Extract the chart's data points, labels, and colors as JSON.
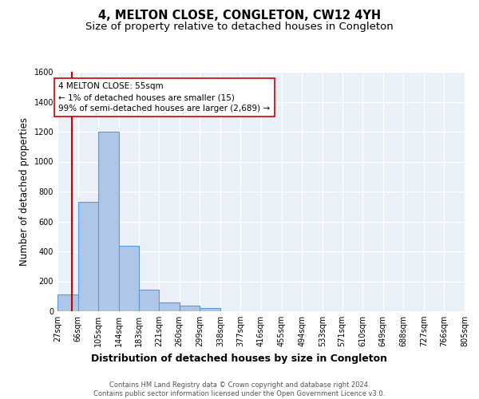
{
  "title": "4, MELTON CLOSE, CONGLETON, CW12 4YH",
  "subtitle": "Size of property relative to detached houses in Congleton",
  "xlabel": "Distribution of detached houses by size in Congleton",
  "ylabel": "Number of detached properties",
  "bin_edges": [
    27,
    66,
    105,
    144,
    183,
    221,
    260,
    299,
    338,
    377,
    416,
    455,
    494,
    533,
    571,
    610,
    649,
    688,
    727,
    766,
    805
  ],
  "bin_labels": [
    "27sqm",
    "66sqm",
    "105sqm",
    "144sqm",
    "183sqm",
    "221sqm",
    "260sqm",
    "299sqm",
    "338sqm",
    "377sqm",
    "416sqm",
    "455sqm",
    "494sqm",
    "533sqm",
    "571sqm",
    "610sqm",
    "649sqm",
    "688sqm",
    "727sqm",
    "766sqm",
    "805sqm"
  ],
  "counts": [
    110,
    730,
    1200,
    440,
    145,
    60,
    35,
    20,
    0,
    0,
    0,
    0,
    0,
    0,
    0,
    0,
    0,
    0,
    0,
    0
  ],
  "bar_color": "#aec6e8",
  "bar_edge_color": "#5b9bd5",
  "property_line_x": 55,
  "property_line_color": "#cc0000",
  "annotation_text": "4 MELTON CLOSE: 55sqm\n← 1% of detached houses are smaller (15)\n99% of semi-detached houses are larger (2,689) →",
  "annotation_box_color": "#ffffff",
  "annotation_box_edge": "#cc0000",
  "ylim": [
    0,
    1600
  ],
  "yticks": [
    0,
    200,
    400,
    600,
    800,
    1000,
    1200,
    1400,
    1600
  ],
  "background_color": "#eaf0f8",
  "grid_color": "#ffffff",
  "footer_text": "Contains HM Land Registry data © Crown copyright and database right 2024.\nContains public sector information licensed under the Open Government Licence v3.0.",
  "title_fontsize": 10.5,
  "subtitle_fontsize": 9.5,
  "ylabel_fontsize": 8.5,
  "xlabel_fontsize": 9,
  "tick_fontsize": 7,
  "annotation_fontsize": 7.5
}
